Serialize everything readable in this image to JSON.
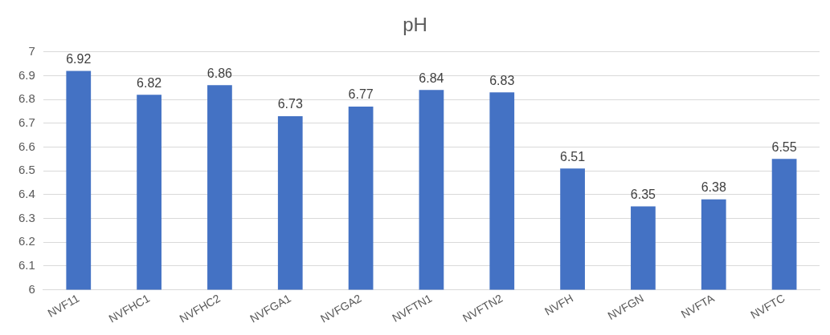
{
  "chart_data": {
    "type": "bar",
    "title": "pH",
    "categories": [
      "NVF11",
      "NVFHC1",
      "NVFHC2",
      "NVFGA1",
      "NVFGA2",
      "NVFTN1",
      "NVFTN2",
      "NVFH",
      "NVFGN",
      "NVFTA",
      "NVFTC"
    ],
    "values": [
      6.92,
      6.82,
      6.86,
      6.73,
      6.77,
      6.84,
      6.83,
      6.51,
      6.35,
      6.38,
      6.55
    ],
    "color": "#4472c4",
    "ylim": [
      6,
      7
    ],
    "yticks": [
      6,
      6.1,
      6.2,
      6.3,
      6.4,
      6.5,
      6.6,
      6.7,
      6.8,
      6.9,
      7
    ],
    "grid": "y",
    "legend": false,
    "data_labels": true
  }
}
